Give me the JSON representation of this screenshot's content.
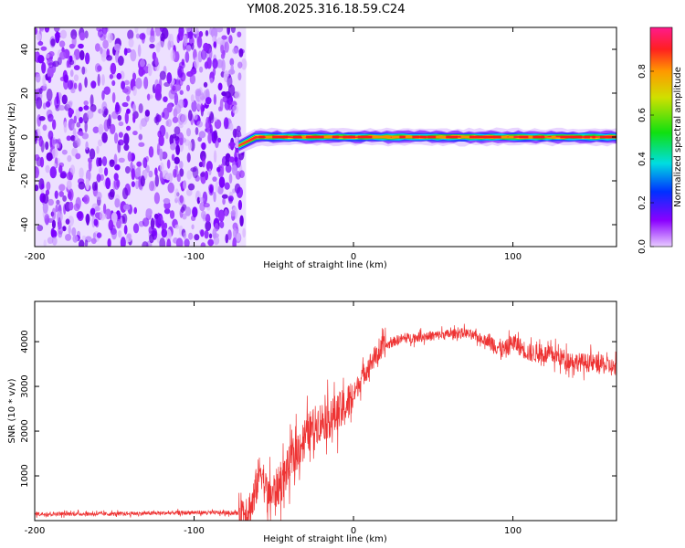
{
  "title": "YM08.2025.316.18.59.C24",
  "colors": {
    "snr_line": "#ee3333",
    "spectrum_noise": "#7b00ff",
    "axis": "#000000"
  },
  "chart_data": [
    {
      "type": "heatmap",
      "name": "spectrogram",
      "xlabel": "Height of straight line (km)",
      "ylabel": "Frequency (Hz)",
      "xlim": [
        -200,
        165
      ],
      "ylim": [
        -50,
        50
      ],
      "xticks": [
        -200,
        -100,
        0,
        100
      ],
      "yticks": [
        -40,
        -20,
        0,
        20,
        40
      ],
      "colorbar": {
        "label": "Normalized spectral amplitude",
        "range": [
          0,
          1
        ],
        "ticks": [
          "0.0",
          "0.2",
          "0.4",
          "0.6",
          "0.8"
        ],
        "palette": "rainbow"
      },
      "signal_band": {
        "noise_region_x": [
          -200,
          -72
        ],
        "transition_x": [
          -72,
          -65
        ],
        "signal_start_freq_hz": -4,
        "signal_freq_hz": 0,
        "signal_x": [
          -72,
          165
        ]
      }
    },
    {
      "type": "line",
      "name": "snr",
      "xlabel": "Height of straight line (km)",
      "ylabel": "SNR (10 * v/v)",
      "xlim": [
        -200,
        165
      ],
      "ylim": [
        0,
        4900
      ],
      "xticks": [
        -200,
        -100,
        0,
        100
      ],
      "yticks": [
        1000,
        2000,
        3000,
        4000
      ],
      "x": [
        -200,
        -150,
        -100,
        -72,
        -64,
        -58,
        -54,
        -46,
        -38,
        -30,
        -22,
        -14,
        -6,
        0,
        5,
        12,
        20,
        28,
        40,
        55,
        70,
        85,
        95,
        100,
        110,
        125,
        140,
        155,
        165
      ],
      "values": [
        150,
        150,
        180,
        170,
        300,
        1200,
        500,
        800,
        1400,
        1900,
        2200,
        2300,
        2500,
        2800,
        3200,
        3600,
        3900,
        4050,
        4100,
        4150,
        4200,
        4000,
        3800,
        4000,
        3750,
        3700,
        3550,
        3500,
        3400
      ]
    }
  ]
}
